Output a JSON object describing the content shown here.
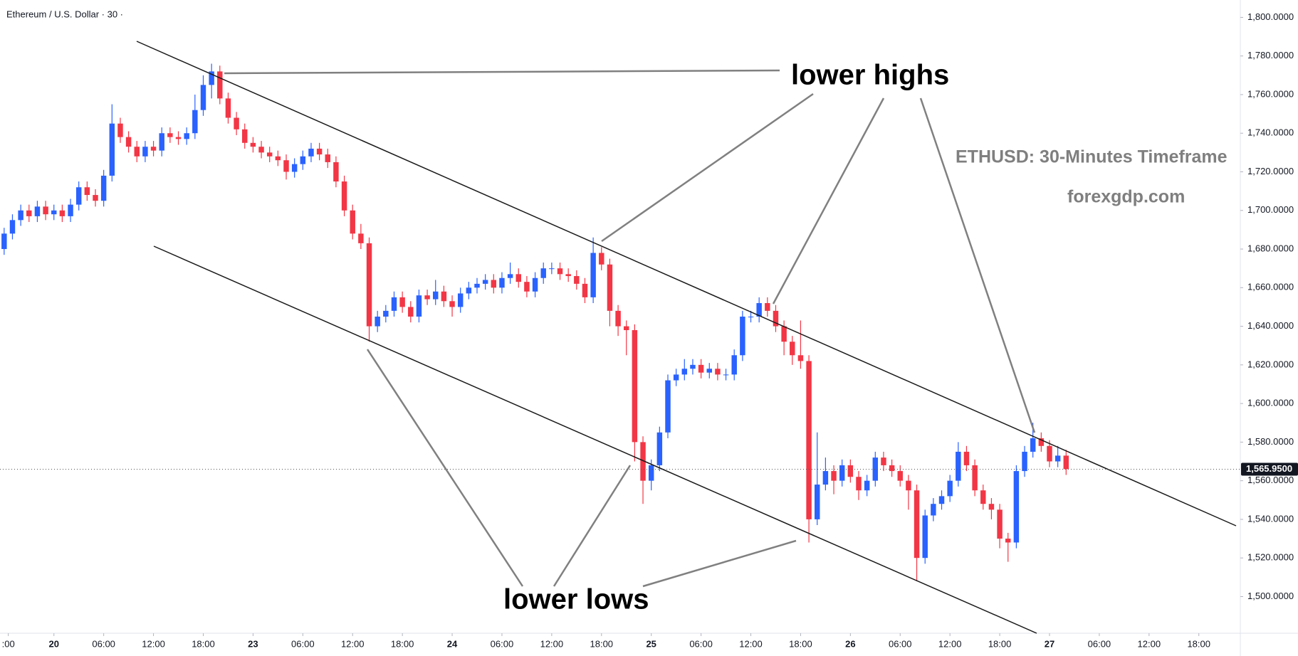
{
  "chart_data": {
    "type": "candlestick",
    "title": "Ethereum / U.S. Dollar · 30 ·",
    "annotations": [
      "lower highs",
      "lower lows"
    ],
    "notes": [
      "ETHUSD: 30-Minutes Timeframe",
      "forexgdp.com"
    ],
    "up_color": "#2962ff",
    "down_color": "#f23645",
    "xlim": [
      0,
      299
    ],
    "ylim": [
      1481,
      1809
    ],
    "xticks": [
      {
        "value": 2,
        "label": ":00"
      },
      {
        "value": 13,
        "label": "20"
      },
      {
        "value": 25,
        "label": "06:00"
      },
      {
        "value": 37,
        "label": "12:00"
      },
      {
        "value": 49,
        "label": "18:00"
      },
      {
        "value": 61,
        "label": "23"
      },
      {
        "value": 73,
        "label": "06:00"
      },
      {
        "value": 85,
        "label": "12:00"
      },
      {
        "value": 97,
        "label": "18:00"
      },
      {
        "value": 109,
        "label": "24"
      },
      {
        "value": 121,
        "label": "06:00"
      },
      {
        "value": 133,
        "label": "12:00"
      },
      {
        "value": 145,
        "label": "18:00"
      },
      {
        "value": 157,
        "label": "25"
      },
      {
        "value": 169,
        "label": "06:00"
      },
      {
        "value": 181,
        "label": "12:00"
      },
      {
        "value": 193,
        "label": "18:00"
      },
      {
        "value": 205,
        "label": "26"
      },
      {
        "value": 217,
        "label": "06:00"
      },
      {
        "value": 229,
        "label": "12:00"
      },
      {
        "value": 241,
        "label": "18:00"
      },
      {
        "value": 253,
        "label": "27"
      },
      {
        "value": 265,
        "label": "06:00"
      },
      {
        "value": 277,
        "label": "12:00"
      },
      {
        "value": 289,
        "label": "18:00"
      }
    ],
    "yticks": [
      {
        "value": 1500,
        "label": "1,500.0000"
      },
      {
        "value": 1520,
        "label": "1,520.0000"
      },
      {
        "value": 1540,
        "label": "1,540.0000"
      },
      {
        "value": 1560,
        "label": "1,560.0000"
      },
      {
        "value": 1580,
        "label": "1,580.0000"
      },
      {
        "value": 1600,
        "label": "1,600.0000"
      },
      {
        "value": 1620,
        "label": "1,620.0000"
      },
      {
        "value": 1640,
        "label": "1,640.0000"
      },
      {
        "value": 1660,
        "label": "1,660.0000"
      },
      {
        "value": 1680,
        "label": "1,680.0000"
      },
      {
        "value": 1700,
        "label": "1,700.0000"
      },
      {
        "value": 1720,
        "label": "1,720.0000"
      },
      {
        "value": 1740,
        "label": "1,740.0000"
      },
      {
        "value": 1760,
        "label": "1,760.0000"
      },
      {
        "value": 1780,
        "label": "1,780.0000"
      },
      {
        "value": 1800,
        "label": "1,800.0000"
      }
    ],
    "last_price": {
      "value": 1565.95,
      "label": "1,565.9500"
    },
    "x": [
      1,
      3,
      5,
      7,
      9,
      11,
      13,
      15,
      17,
      19,
      21,
      23,
      25,
      27,
      29,
      31,
      33,
      35,
      37,
      39,
      41,
      43,
      45,
      47,
      49,
      51,
      53,
      55,
      57,
      59,
      61,
      63,
      65,
      67,
      69,
      71,
      73,
      75,
      77,
      79,
      81,
      83,
      85,
      87,
      89,
      91,
      93,
      95,
      97,
      99,
      101,
      103,
      105,
      107,
      109,
      111,
      113,
      115,
      117,
      119,
      121,
      123,
      125,
      127,
      129,
      131,
      133,
      135,
      137,
      139,
      141,
      143,
      145,
      147,
      149,
      151,
      153,
      155,
      157,
      159,
      161,
      163,
      165,
      167,
      169,
      171,
      173,
      175,
      177,
      179,
      181,
      183,
      185,
      187,
      189,
      191,
      193,
      195,
      197,
      199,
      201,
      203,
      205,
      207,
      209,
      211,
      213,
      215,
      217,
      219,
      221,
      223,
      225,
      227,
      229,
      231,
      233,
      235,
      237,
      239,
      241,
      243,
      245,
      247,
      249,
      251,
      253,
      255,
      257
    ],
    "open": [
      1680,
      1688,
      1695,
      1700,
      1697,
      1702,
      1698,
      1700,
      1697,
      1703,
      1712,
      1708,
      1705,
      1718,
      1745,
      1738,
      1733,
      1728,
      1733,
      1731,
      1740,
      1738,
      1737,
      1740,
      1752,
      1765,
      1772,
      1758,
      1748,
      1742,
      1735,
      1733,
      1730,
      1728,
      1726,
      1720,
      1724,
      1728,
      1732,
      1729,
      1725,
      1715,
      1700,
      1688,
      1683,
      1640,
      1645,
      1648,
      1655,
      1650,
      1645,
      1656,
      1654,
      1658,
      1653,
      1650,
      1657,
      1660,
      1662,
      1664,
      1660,
      1665,
      1667,
      1663,
      1658,
      1665,
      1670,
      1670,
      1667,
      1666,
      1662,
      1655,
      1678,
      1672,
      1648,
      1640,
      1638,
      1580,
      1560,
      1568,
      1585,
      1612,
      1615,
      1618,
      1620,
      1616,
      1618,
      1615,
      1615,
      1625,
      1645,
      1645,
      1652,
      1648,
      1640,
      1632,
      1625,
      1622,
      1540,
      1558,
      1565,
      1560,
      1568,
      1562,
      1555,
      1560,
      1572,
      1568,
      1565,
      1560,
      1555,
      1520,
      1542,
      1548,
      1552,
      1560,
      1575,
      1568,
      1555,
      1548,
      1545,
      1530,
      1528,
      1565,
      1575,
      1582,
      1578,
      1570,
      1573
    ],
    "high": [
      1691,
      1698,
      1703,
      1703,
      1705,
      1705,
      1703,
      1703,
      1706,
      1715,
      1715,
      1711,
      1721,
      1755,
      1748,
      1741,
      1736,
      1736,
      1736,
      1743,
      1743,
      1741,
      1743,
      1760,
      1770,
      1776,
      1775,
      1761,
      1751,
      1745,
      1738,
      1736,
      1733,
      1731,
      1729,
      1727,
      1731,
      1735,
      1735,
      1732,
      1728,
      1718,
      1703,
      1693,
      1686,
      1648,
      1651,
      1658,
      1658,
      1653,
      1659,
      1659,
      1664,
      1661,
      1656,
      1660,
      1663,
      1665,
      1667,
      1667,
      1668,
      1673,
      1670,
      1666,
      1668,
      1673,
      1673,
      1673,
      1670,
      1669,
      1665,
      1686,
      1681,
      1675,
      1651,
      1643,
      1641,
      1583,
      1571,
      1588,
      1615,
      1618,
      1623,
      1623,
      1623,
      1621,
      1621,
      1618,
      1628,
      1648,
      1648,
      1655,
      1655,
      1651,
      1643,
      1635,
      1643,
      1625,
      1585,
      1572,
      1568,
      1571,
      1571,
      1565,
      1563,
      1575,
      1575,
      1571,
      1568,
      1563,
      1558,
      1545,
      1551,
      1555,
      1563,
      1580,
      1578,
      1571,
      1558,
      1551,
      1548,
      1533,
      1568,
      1578,
      1590,
      1585,
      1581,
      1578,
      1576
    ],
    "low": [
      1677,
      1685,
      1692,
      1694,
      1694,
      1695,
      1695,
      1694,
      1694,
      1700,
      1705,
      1702,
      1702,
      1715,
      1735,
      1730,
      1725,
      1725,
      1728,
      1728,
      1735,
      1734,
      1734,
      1737,
      1749,
      1758,
      1755,
      1745,
      1739,
      1732,
      1730,
      1727,
      1725,
      1723,
      1716,
      1717,
      1721,
      1725,
      1726,
      1722,
      1712,
      1697,
      1685,
      1680,
      1632,
      1637,
      1642,
      1645,
      1647,
      1642,
      1642,
      1651,
      1651,
      1650,
      1645,
      1647,
      1654,
      1657,
      1659,
      1657,
      1657,
      1662,
      1660,
      1655,
      1655,
      1662,
      1667,
      1664,
      1663,
      1659,
      1652,
      1652,
      1669,
      1640,
      1635,
      1625,
      1570,
      1548,
      1555,
      1565,
      1582,
      1609,
      1612,
      1615,
      1613,
      1613,
      1612,
      1612,
      1612,
      1622,
      1642,
      1642,
      1645,
      1637,
      1625,
      1620,
      1618,
      1528,
      1537,
      1555,
      1553,
      1557,
      1559,
      1550,
      1552,
      1557,
      1565,
      1562,
      1557,
      1545,
      1508,
      1517,
      1539,
      1545,
      1549,
      1557,
      1565,
      1552,
      1545,
      1540,
      1525,
      1518,
      1525,
      1562,
      1572,
      1575,
      1567,
      1567,
      1563
    ],
    "close": [
      1688,
      1695,
      1700,
      1697,
      1702,
      1698,
      1700,
      1697,
      1703,
      1712,
      1708,
      1705,
      1718,
      1745,
      1738,
      1733,
      1728,
      1733,
      1731,
      1740,
      1738,
      1737,
      1740,
      1752,
      1765,
      1772,
      1758,
      1748,
      1742,
      1735,
      1733,
      1730,
      1728,
      1726,
      1720,
      1724,
      1728,
      1732,
      1729,
      1725,
      1715,
      1700,
      1688,
      1683,
      1640,
      1645,
      1648,
      1655,
      1650,
      1645,
      1656,
      1654,
      1658,
      1653,
      1650,
      1657,
      1660,
      1662,
      1664,
      1660,
      1665,
      1667,
      1663,
      1658,
      1665,
      1670,
      1670,
      1667,
      1666,
      1662,
      1655,
      1678,
      1672,
      1648,
      1640,
      1638,
      1580,
      1560,
      1568,
      1585,
      1612,
      1615,
      1618,
      1620,
      1616,
      1618,
      1615,
      1615,
      1625,
      1645,
      1645,
      1652,
      1648,
      1640,
      1632,
      1625,
      1622,
      1540,
      1558,
      1565,
      1560,
      1568,
      1562,
      1555,
      1560,
      1572,
      1568,
      1565,
      1560,
      1555,
      1520,
      1542,
      1548,
      1552,
      1560,
      1575,
      1568,
      1555,
      1548,
      1545,
      1530,
      1528,
      1565,
      1575,
      1582,
      1578,
      1570,
      1573,
      1566
    ]
  }
}
